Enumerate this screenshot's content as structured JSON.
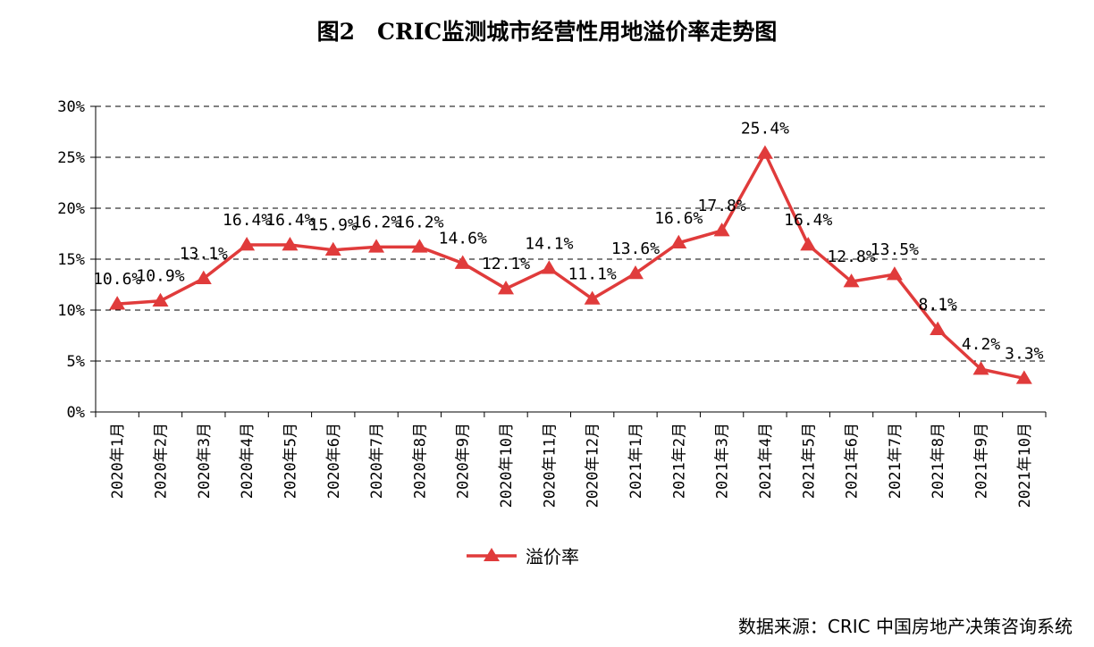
{
  "chart_data": {
    "type": "line",
    "title": "图2　CRIC监测城市经营性用地溢价率走势图",
    "categories": [
      "2020年1月",
      "2020年2月",
      "2020年3月",
      "2020年4月",
      "2020年5月",
      "2020年6月",
      "2020年7月",
      "2020年8月",
      "2020年9月",
      "2020年10月",
      "2020年11月",
      "2020年12月",
      "2021年1月",
      "2021年2月",
      "2021年3月",
      "2021年4月",
      "2021年5月",
      "2021年6月",
      "2021年7月",
      "2021年8月",
      "2021年9月",
      "2021年10月"
    ],
    "series": [
      {
        "name": "溢价率",
        "values": [
          10.6,
          10.9,
          13.1,
          16.4,
          16.4,
          15.9,
          16.2,
          16.2,
          14.6,
          12.1,
          14.1,
          11.1,
          13.6,
          16.6,
          17.8,
          25.4,
          16.4,
          12.8,
          13.5,
          8.1,
          4.2,
          3.3
        ],
        "labels": [
          "10.6%",
          "10.9%",
          "13.1%",
          "16.4%",
          "16.4%",
          "15.9%",
          "16.2%",
          "16.2%",
          "14.6%",
          "12.1%",
          "14.1%",
          "11.1%",
          "13.6%",
          "16.6%",
          "17.8%",
          "25.4%",
          "16.4%",
          "12.8%",
          "13.5%",
          "8.1%",
          "4.2%",
          "3.3%"
        ],
        "color": "#e03b3b",
        "marker": "triangle"
      }
    ],
    "y_ticks": [
      "0%",
      "5%",
      "10%",
      "15%",
      "20%",
      "25%",
      "30%"
    ],
    "ylim": [
      0,
      30
    ],
    "grid": "horizontal-dashed",
    "legend": "bottom-center"
  },
  "source_note": "数据来源：CRIC 中国房地产决策咨询系统"
}
